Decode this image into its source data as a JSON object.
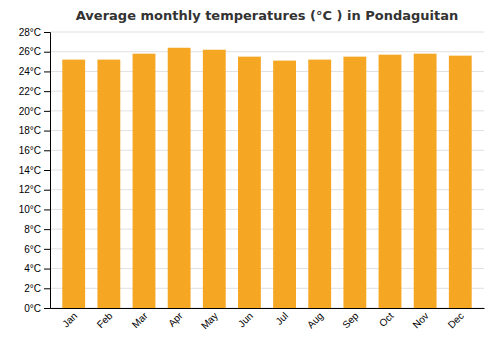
{
  "chart_data": {
    "type": "bar",
    "title": "Average monthly temperatures (°C ) in Pondaguitan",
    "categories": [
      "Jan",
      "Feb",
      "Mar",
      "Apr",
      "May",
      "Jun",
      "Jul",
      "Aug",
      "Sep",
      "Oct",
      "Nov",
      "Dec"
    ],
    "values": [
      25.2,
      25.2,
      25.8,
      26.4,
      26.2,
      25.5,
      25.1,
      25.2,
      25.5,
      25.7,
      25.8,
      25.6
    ],
    "color": "#F5A623",
    "ylim": [
      0,
      28
    ],
    "yticks": [
      {
        "value": 0,
        "label": "0°C"
      },
      {
        "value": 2,
        "label": "2°C"
      },
      {
        "value": 4,
        "label": "4°C"
      },
      {
        "value": 6,
        "label": "6°C"
      },
      {
        "value": 8,
        "label": "8°C"
      },
      {
        "value": 10,
        "label": "10°C"
      },
      {
        "value": 12,
        "label": "12°C"
      },
      {
        "value": 14,
        "label": "14°C"
      },
      {
        "value": 16,
        "label": "16°C"
      },
      {
        "value": 18,
        "label": "18°C"
      },
      {
        "value": 20,
        "label": "20°C"
      },
      {
        "value": 22,
        "label": "22°C"
      },
      {
        "value": 24,
        "label": "24°C"
      },
      {
        "value": 26,
        "label": "26°C"
      },
      {
        "value": 28,
        "label": "28°C"
      }
    ],
    "grid": true
  }
}
